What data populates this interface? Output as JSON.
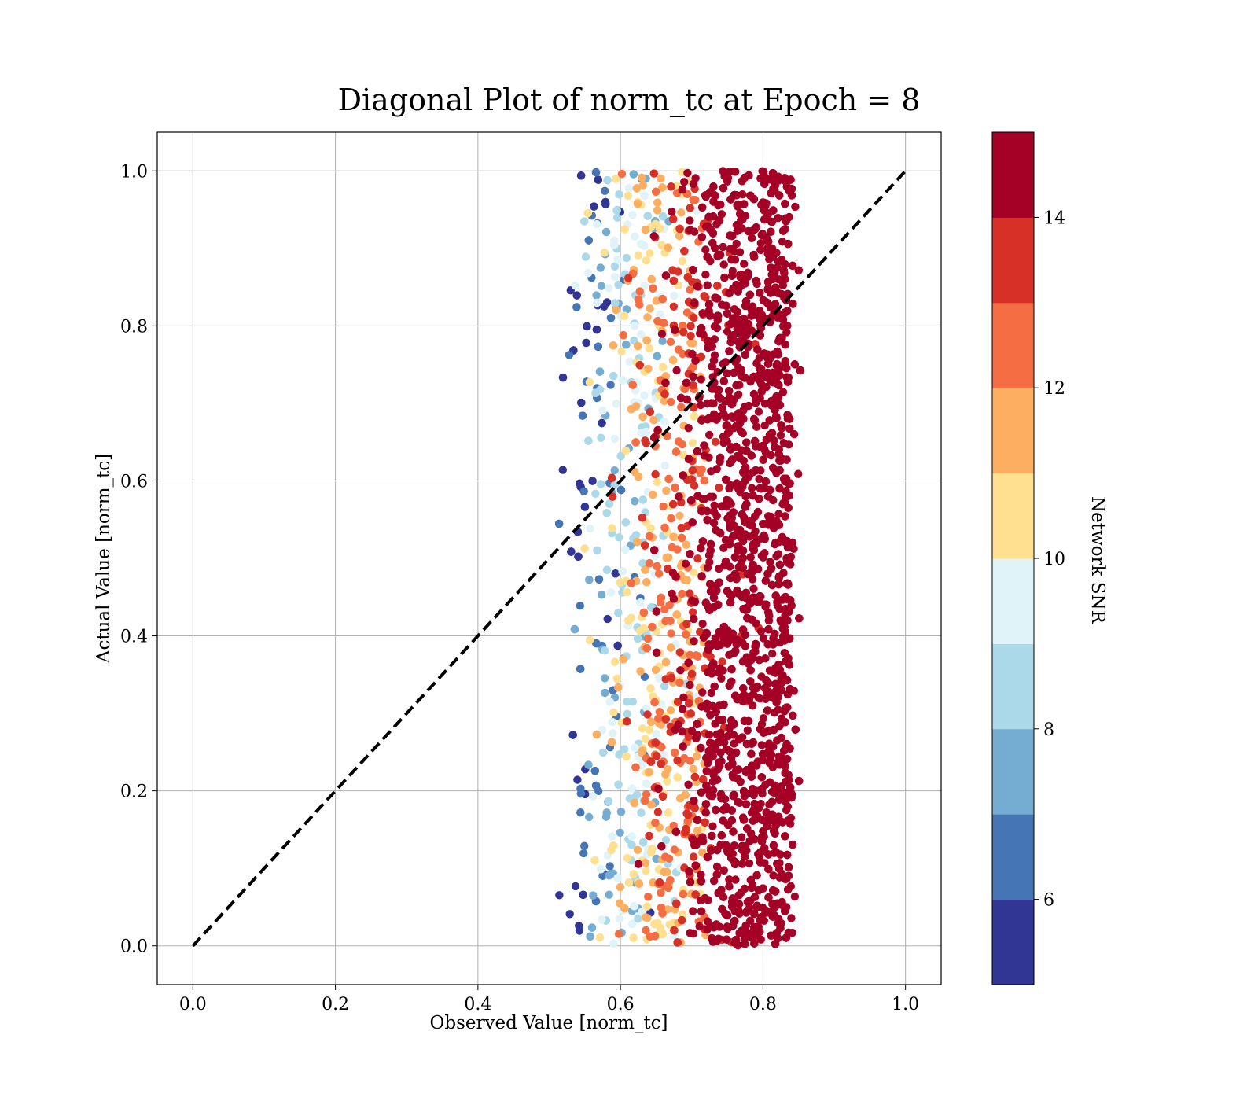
{
  "chart_data": {
    "type": "scatter",
    "title": "Diagonal Plot of norm_tc at Epoch = 8",
    "xlabel": "Observed Value [norm_tc]",
    "ylabel": "Actual Value [norm_tc]",
    "xlim": [
      -0.05,
      1.05
    ],
    "ylim": [
      -0.05,
      1.05
    ],
    "xticks": [
      0.0,
      0.2,
      0.4,
      0.6,
      0.8,
      1.0
    ],
    "yticks": [
      0.0,
      0.2,
      0.4,
      0.6,
      0.8,
      1.0
    ],
    "x_tick_labels": [
      "0.0",
      "0.2",
      "0.4",
      "0.6",
      "0.8",
      "1.0"
    ],
    "y_tick_labels": [
      "0.0",
      "0.2",
      "0.4",
      "0.6",
      "0.8",
      "1.0"
    ],
    "grid": true,
    "diagonal_line": {
      "x": [
        0.0,
        1.0
      ],
      "y": [
        0.0,
        1.0
      ],
      "style": "dashed",
      "color": "#000000"
    },
    "colorbar": {
      "label": "Network SNR",
      "range": [
        5,
        15
      ],
      "ticks": [
        6,
        8,
        10,
        12,
        14
      ],
      "tick_labels": [
        "6",
        "8",
        "10",
        "12",
        "14"
      ],
      "colors": [
        "#313695",
        "#4575b4",
        "#74add1",
        "#abd9e9",
        "#e0f3f8",
        "#fee090",
        "#fdae61",
        "#f46d43",
        "#d73027",
        "#a50026"
      ]
    },
    "point_distribution": {
      "x_range": [
        0.51,
        0.86
      ],
      "y_range": [
        0.0,
        1.0
      ],
      "snr_trend": "SNR increases with observed value; low SNR (blue) near x=0.52, high SNR (dark red) above x=0.72"
    }
  }
}
